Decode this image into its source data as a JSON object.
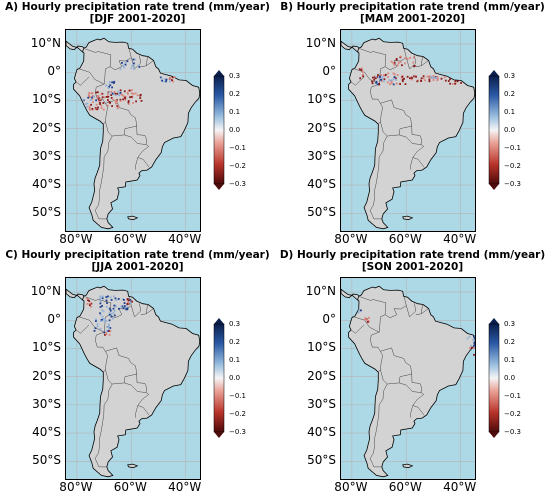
{
  "title_line1": "Hourly precipitation rate trend (mm/year)",
  "panels": [
    {
      "letter": "A)",
      "season": "[DJF 2001-2020]"
    },
    {
      "letter": "B)",
      "season": "[MAM 2001-2020]"
    },
    {
      "letter": "C)",
      "season": "[JJA 2001-2020]"
    },
    {
      "letter": "D)",
      "season": "[SON 2001-2020]"
    }
  ],
  "axes": {
    "lat_labels": [
      "10°N",
      "0°",
      "10°S",
      "20°S",
      "30°S",
      "40°S",
      "50°S"
    ],
    "lon_labels": [
      "80°W",
      "60°W",
      "40°W"
    ],
    "lat_range": [
      15,
      -57
    ],
    "lon_range": [
      -84,
      -34
    ],
    "gridlines": true
  },
  "colorbar": {
    "ticks": [
      "0.3",
      "0.2",
      "0.1",
      "0.0",
      "−0.1",
      "−0.2",
      "−0.3"
    ],
    "range": [
      -0.3,
      0.3
    ],
    "colormap": "red-white-blue",
    "extend": "both"
  },
  "colors": {
    "ocean": "#add8e6",
    "land": "#d3d3d3",
    "border": "#404040",
    "negative": "#8b1a1a",
    "positive": "#1f3f8f"
  }
}
